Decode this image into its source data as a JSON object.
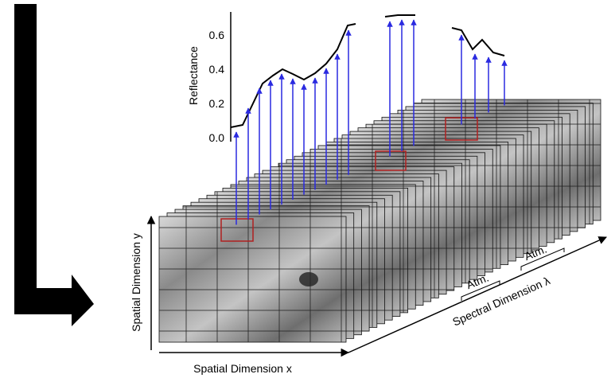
{
  "plot": {
    "axis_label": "Reflectance",
    "ticks": [
      "0.0",
      "0.2",
      "0.4",
      "0.6"
    ]
  },
  "cube": {
    "y_axis": "Spatial Dimension y",
    "x_axis": "Spatial Dimension x",
    "spectral_axis": "Spectral Dimension λ",
    "atm_labels": [
      "Atm.",
      "Atm."
    ]
  }
}
